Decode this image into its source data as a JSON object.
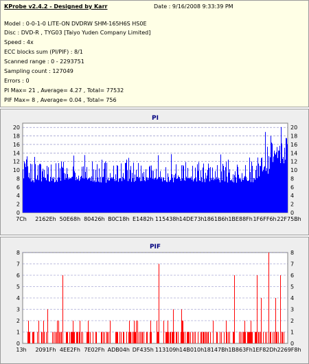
{
  "header": {
    "title": "KProbe v2.4.2 - Designed by Karr",
    "date": "Date : 9/16/2008 9:33:39 PM"
  },
  "info_lines": [
    "Model : 0-0-1-0 LITE-ON DVDRW SHM-165H6S HS0E",
    "Disc : DVD-R , TYG03 [Taiyo Yuden Company Limited]",
    "Speed : 4x",
    "ECC blocks sum (PI/PIF) : 8/1",
    "Scanned range : 0 - 2293751",
    "Sampling count : 127049",
    "Errors : 0",
    "PI Max= 21 , Average= 4.27 , Total= 77532",
    "PIF Max= 8 , Average= 0.04 , Total= 756"
  ],
  "colors": {
    "pi_bars": "#0000ff",
    "pif_bars": "#ff0000",
    "panel_title": "#000080",
    "grid": "#8080c0"
  },
  "chart_data": [
    {
      "type": "bar",
      "title": "PI",
      "ylim": [
        0,
        21
      ],
      "yticks": [
        0,
        2,
        4,
        6,
        8,
        10,
        12,
        14,
        16,
        18,
        20
      ],
      "x_tick_labels": [
        "7Ch",
        "2162Eh",
        "50E68h",
        "80426h",
        "B0C18h",
        "E1482h",
        "115438h",
        "14DE73h",
        "1861B6h",
        "1BE88Fh",
        "1F6FF6h",
        "22F75Bh"
      ],
      "x_range": [
        0,
        2293751
      ],
      "baseline_typical": 7,
      "max": 21,
      "average": 4.27,
      "peak_region_start": 0.9
    },
    {
      "type": "bar",
      "title": "PIF",
      "ylim": [
        0,
        8
      ],
      "yticks": [
        0,
        1,
        2,
        3,
        4,
        5,
        6,
        7,
        8
      ],
      "x_tick_labels": [
        "13h",
        "2091Fh",
        "4EE2Fh",
        "7E02Fh",
        "ADB04h",
        "DF435h",
        "113109h",
        "14B010h",
        "18147Bh",
        "1B863Fh",
        "1EF82Dh",
        "2269F8h"
      ],
      "x_range": [
        0,
        2293751
      ],
      "max": 8,
      "average": 0.04,
      "spikes": [
        {
          "x": 0.15,
          "y": 6
        },
        {
          "x": 0.515,
          "y": 7
        },
        {
          "x": 0.8,
          "y": 6
        },
        {
          "x": 0.885,
          "y": 6
        },
        {
          "x": 0.9,
          "y": 4
        },
        {
          "x": 0.93,
          "y": 8
        },
        {
          "x": 0.955,
          "y": 4
        },
        {
          "x": 0.975,
          "y": 6
        }
      ]
    }
  ]
}
